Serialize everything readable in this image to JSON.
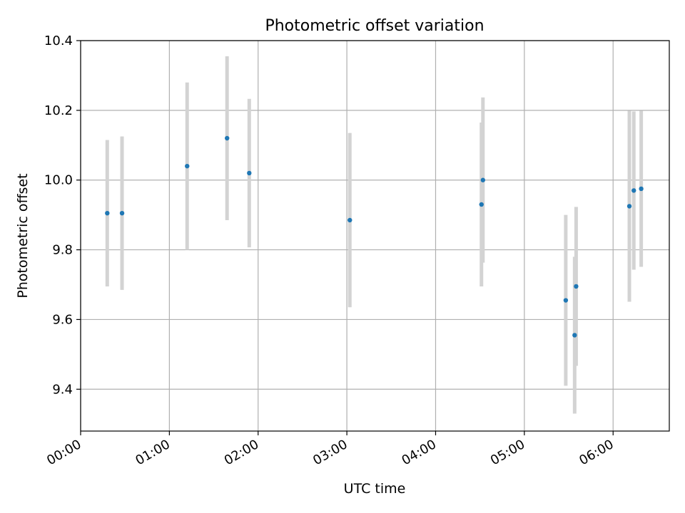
{
  "chart_data": {
    "type": "scatter",
    "title": "Photometric offset variation",
    "xlabel": "UTC time",
    "ylabel": "Photometric offset",
    "xlim": [
      "00:00",
      "06:38"
    ],
    "ylim": [
      9.28,
      10.4
    ],
    "x_ticks": [
      "00:00",
      "01:00",
      "02:00",
      "03:00",
      "04:00",
      "05:00",
      "06:00"
    ],
    "y_ticks": [
      "9.4",
      "9.6",
      "9.8",
      "10.0",
      "10.2",
      "10.4"
    ],
    "grid": true,
    "marker_color": "#1f77b4",
    "errorbar_color": "#d3d3d3",
    "points": [
      {
        "x": "00:18",
        "y": 9.905,
        "yerr": 0.21
      },
      {
        "x": "00:28",
        "y": 9.905,
        "yerr": 0.22
      },
      {
        "x": "01:12",
        "y": 10.04,
        "yerr": 0.24
      },
      {
        "x": "01:39",
        "y": 10.12,
        "yerr": 0.235
      },
      {
        "x": "01:54",
        "y": 10.02,
        "yerr": 0.213
      },
      {
        "x": "03:02",
        "y": 9.885,
        "yerr": 0.25
      },
      {
        "x": "04:31",
        "y": 9.93,
        "yerr": 0.235
      },
      {
        "x": "04:32",
        "y": 10.0,
        "yerr": 0.237
      },
      {
        "x": "05:28",
        "y": 9.655,
        "yerr": 0.245
      },
      {
        "x": "05:34",
        "y": 9.555,
        "yerr": 0.225
      },
      {
        "x": "05:35",
        "y": 9.695,
        "yerr": 0.228
      },
      {
        "x": "06:11",
        "y": 9.925,
        "yerr": 0.274
      },
      {
        "x": "06:14",
        "y": 9.97,
        "yerr": 0.227
      },
      {
        "x": "06:19",
        "y": 9.975,
        "yerr": 0.224
      }
    ]
  }
}
